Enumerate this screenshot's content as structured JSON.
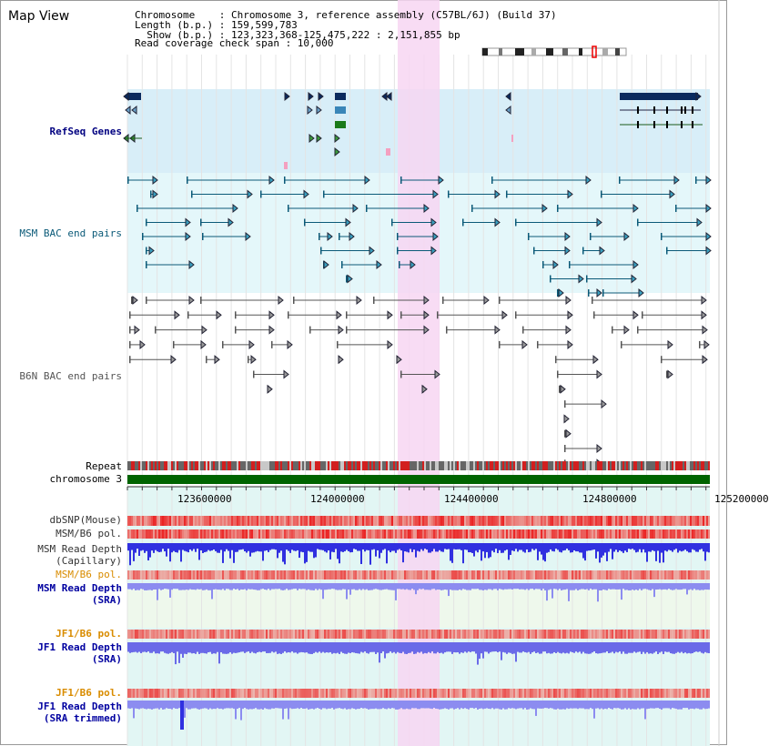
{
  "title": "Map View",
  "info": {
    "line1": "Chromosome    : Chromosome 3, reference assembly (C57BL/6J) (Build 37)",
    "line2": "Length (b.p.) : 159,599,783",
    "line3": "  Show (b.p.) : 123,323,368-125,475,222 : 2,151,855 bp",
    "line4": "Read coverage check span : 10,000"
  },
  "tracks": {
    "refseq": "RefSeq Genes",
    "msm_bac": "MSM BAC end pairs",
    "b6n_bac": "B6N BAC end pairs",
    "repeat": "Repeat",
    "chromosome": "chromosome 3",
    "dbsnp": "dbSNP(Mouse)",
    "msm_b6_pol_1": "MSM/B6 pol.",
    "msm_read_depth": "MSM Read Depth",
    "capillary": "(Capillary)",
    "msm_b6_pol_2": "MSM/B6 pol.",
    "msm_read_depth_sra": "MSM Read Depth",
    "sra1": "(SRA)",
    "jf1_b6_pol_1": "JF1/B6 pol.",
    "jf1_read_depth": "JF1 Read Depth",
    "sra2": "(SRA)",
    "jf1_b6_pol_2": "JF1/B6 pol.",
    "jf1_read_depth_trim": "JF1 Read Depth",
    "sra_trimmed": "(SRA trimmed)"
  },
  "ruler": {
    "ticks": [
      "123600000",
      "124000000",
      "124400000",
      "124800000",
      "125200000"
    ]
  },
  "colors": {
    "refseq_label": "#000080",
    "msm_label": "#0b5a78",
    "b6n_label": "#555555",
    "orange_label": "#d98c00",
    "navy_label": "#0000a0",
    "highlight": "#f8d8f4",
    "green_chrom": "#006400"
  }
}
